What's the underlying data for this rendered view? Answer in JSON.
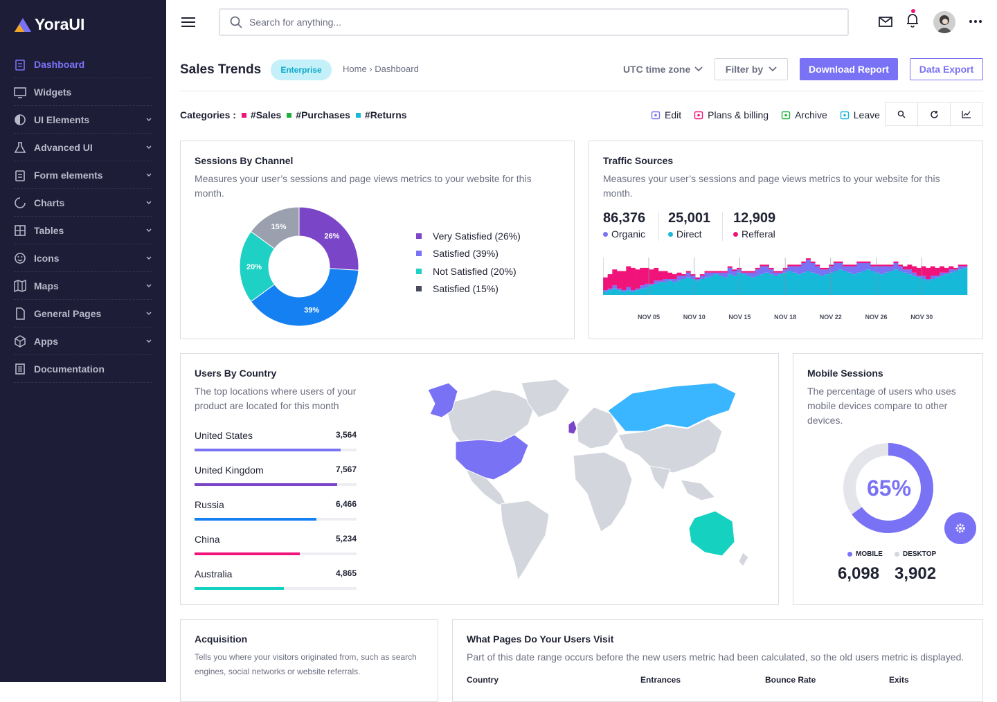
{
  "brand": {
    "name": "YoraUI",
    "colors": {
      "accent": "#7a72f5",
      "sidebar": "#1e1d38",
      "pink": "#f0147a",
      "cyan": "#16b9d8",
      "teal": "#14d1c0"
    }
  },
  "sidebar": {
    "items": [
      {
        "label": "Dashboard",
        "icon": "clipboard-icon",
        "active": true,
        "chevron": false
      },
      {
        "label": "Widgets",
        "icon": "monitor-icon",
        "chevron": false
      },
      {
        "label": "UI Elements",
        "icon": "contrast-icon",
        "chevron": true
      },
      {
        "label": "Advanced UI",
        "icon": "flask-icon",
        "chevron": true
      },
      {
        "label": "Form elements",
        "icon": "clipboard-icon",
        "chevron": true
      },
      {
        "label": "Charts",
        "icon": "pie-icon",
        "chevron": true
      },
      {
        "label": "Tables",
        "icon": "grid-icon",
        "chevron": true
      },
      {
        "label": "Icons",
        "icon": "smile-icon",
        "chevron": true
      },
      {
        "label": "Maps",
        "icon": "map-icon",
        "chevron": true
      },
      {
        "label": "General Pages",
        "icon": "file-icon",
        "chevron": true
      },
      {
        "label": "Apps",
        "icon": "cube-icon",
        "chevron": true
      },
      {
        "label": "Documentation",
        "icon": "doc-icon",
        "chevron": false
      }
    ]
  },
  "topbar": {
    "search_placeholder": "Search for anything..."
  },
  "header": {
    "title": "Sales Trends",
    "badge": "Enterprise",
    "breadcrumb": "Home › Dashboard",
    "timezone": "UTC time zone",
    "filter": "Filter by",
    "download": "Download Report",
    "export": "Data Export"
  },
  "categories": {
    "label": "Categories :",
    "items": [
      {
        "name": "#Sales",
        "color": "#f0147a"
      },
      {
        "name": "#Purchases",
        "color": "#1db13a"
      },
      {
        "name": "#Returns",
        "color": "#16b9d8"
      }
    ]
  },
  "actions": [
    {
      "label": "Edit",
      "color": "#7a72f5"
    },
    {
      "label": "Plans & billing",
      "color": "#f0147a"
    },
    {
      "label": "Archive",
      "color": "#1db13a"
    },
    {
      "label": "Leave",
      "color": "#16b9d8"
    }
  ],
  "sessions": {
    "title": "Sessions By Channel",
    "desc": "Measures your user’s sessions and page views metrics to your website for this month.",
    "chart_data": {
      "type": "pie",
      "slices": [
        {
          "label": "26%",
          "value": 26,
          "color": "#7b45c8"
        },
        {
          "label": "39%",
          "value": 39,
          "color": "#1580f2"
        },
        {
          "label": "20%",
          "value": 20,
          "color": "#1fd0c4"
        },
        {
          "label": "15%",
          "value": 15,
          "color": "#9aa0ae"
        }
      ]
    },
    "legend": [
      {
        "label": "Very Satisfied (26%)",
        "color": "#7b45c8"
      },
      {
        "label": "Satisfied (39%)",
        "color": "#7a72f5"
      },
      {
        "label": "Not Satisfied (20%)",
        "color": "#1fd0c4"
      },
      {
        "label": "Satisfied (15%)",
        "color": "#484b5c"
      }
    ]
  },
  "traffic": {
    "title": "Traffic Sources",
    "desc": "Measures your user’s sessions and page views metrics to your website for this month.",
    "stats": [
      {
        "value": "86,376",
        "label": "Organic",
        "color": "#7a72f5"
      },
      {
        "value": "25,001",
        "label": "Direct",
        "color": "#16b9d8"
      },
      {
        "value": "12,909",
        "label": "Refferal",
        "color": "#f0147a"
      }
    ],
    "chart_data": {
      "type": "bar",
      "stacked": true,
      "ticks": [
        "NOV 05",
        "NOV 10",
        "NOV 15",
        "NOV 18",
        "NOV 22",
        "NOV 26",
        "NOV 30"
      ],
      "series": [
        {
          "color": "#16b9d8",
          "values": [
            2,
            3,
            4,
            3,
            2,
            3,
            2,
            3,
            4,
            5,
            6,
            7,
            8,
            8,
            9,
            8,
            9,
            10,
            11,
            10,
            9,
            10,
            11,
            12,
            13,
            12,
            11,
            13,
            12,
            14,
            13,
            12,
            11,
            12,
            13,
            14,
            13,
            12,
            13,
            14,
            15,
            14,
            13,
            14,
            15,
            14,
            13,
            12,
            13,
            14,
            15,
            16,
            15,
            14,
            13,
            14,
            15,
            16,
            15,
            14,
            13,
            14,
            15,
            16,
            15,
            14,
            13,
            12,
            11,
            10,
            9,
            10,
            11,
            12,
            13,
            14,
            15,
            16,
            17
          ]
        },
        {
          "color": "#7a72f5",
          "values": [
            1,
            1,
            2,
            1,
            1,
            2,
            1,
            1,
            2,
            2,
            1,
            2,
            1,
            2,
            1,
            2,
            3,
            2,
            3,
            2,
            1,
            2,
            3,
            2,
            1,
            2,
            3,
            4,
            3,
            2,
            1,
            2,
            3,
            4,
            5,
            4,
            3,
            2,
            1,
            2,
            3,
            4,
            5,
            6,
            7,
            6,
            5,
            4,
            3,
            4,
            5,
            4,
            3,
            4,
            5,
            6,
            5,
            4,
            3,
            4,
            5,
            4,
            3,
            4,
            3,
            2,
            3,
            2,
            1,
            2,
            1,
            2,
            1,
            2,
            1,
            2,
            1,
            2,
            1
          ]
        },
        {
          "color": "#f0147a",
          "values": [
            8,
            9,
            10,
            11,
            12,
            13,
            14,
            12,
            11,
            10,
            9,
            8,
            6,
            5,
            4,
            3,
            2,
            1,
            1,
            1,
            1,
            1,
            1,
            1,
            1,
            1,
            1,
            1,
            1,
            1,
            1,
            1,
            1,
            1,
            1,
            1,
            1,
            1,
            1,
            1,
            1,
            1,
            1,
            1,
            1,
            1,
            1,
            1,
            1,
            1,
            1,
            1,
            1,
            1,
            1,
            1,
            1,
            1,
            1,
            1,
            1,
            1,
            1,
            1,
            1,
            2,
            3,
            4,
            5,
            6,
            7,
            6,
            5,
            4,
            3,
            2,
            1,
            1,
            1
          ]
        }
      ]
    }
  },
  "users": {
    "title": "Users By Country",
    "desc": "The top locations where users of your product are located for this month",
    "countries": [
      {
        "name": "United States",
        "value": "3,564",
        "pct": 90,
        "color": "#7a72f5"
      },
      {
        "name": "United Kingdom",
        "value": "7,567",
        "pct": 88,
        "color": "#7b45c8"
      },
      {
        "name": "Russia",
        "value": "6,466",
        "pct": 75,
        "color": "#1580f2"
      },
      {
        "name": "China",
        "value": "5,234",
        "pct": 65,
        "color": "#f0147a"
      },
      {
        "name": "Australia",
        "value": "4,865",
        "pct": 55,
        "color": "#14d1c0"
      }
    ]
  },
  "mobile": {
    "title": "Mobile Sessions",
    "desc": "The percentage of users who uses mobile devices compare to other devices.",
    "percent": "65%",
    "fraction": 0.65,
    "mobile_label": "MOBILE",
    "desktop_label": "DESKTOP",
    "mobile_value": "6,098",
    "desktop_value": "3,902"
  },
  "acquisition": {
    "title": "Acquisition",
    "desc": "Tells you where your visitors originated from, such as search engines, social networks or website referrals."
  },
  "pages": {
    "title": "What Pages Do Your Users Visit",
    "desc": "Part of this date range occurs before the new users metric had been calculated, so the old users metric is displayed.",
    "columns": [
      "Country",
      "Entrances",
      "Bounce Rate",
      "Exits"
    ]
  }
}
